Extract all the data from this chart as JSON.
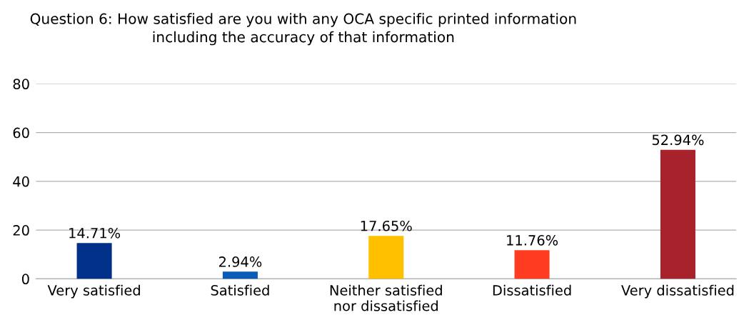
{
  "chart_data": {
    "type": "bar",
    "title": "Question 6: How satisfied are you with any OCA specific printed information\nincluding the accuracy of that information",
    "categories": [
      "Very satisfied",
      "Satisfied",
      "Neither satisfied\nnor dissatisfied",
      "Dissatisfied",
      "Very dissatisfied"
    ],
    "values": [
      14.71,
      2.94,
      17.65,
      11.76,
      52.94
    ],
    "colors": [
      "#02318a",
      "#0a5cb8",
      "#ffc000",
      "#ff3b22",
      "#a8222b"
    ],
    "value_labels": [
      "14.71%",
      "2.94%",
      "17.65%",
      "11.76%",
      "52.94%"
    ],
    "ylim": [
      0,
      80
    ],
    "yticks": [
      0,
      20,
      40,
      60,
      80
    ],
    "grid": "y",
    "legend": false
  }
}
